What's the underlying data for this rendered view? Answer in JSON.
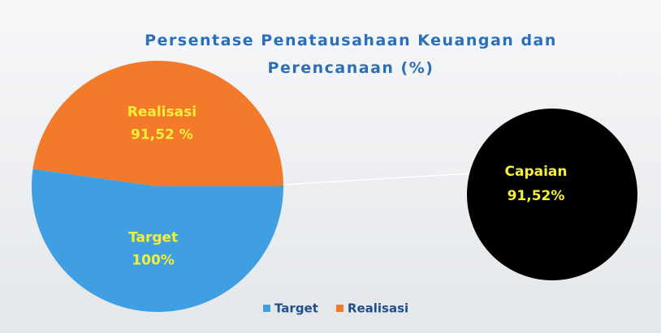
{
  "chart_data": {
    "type": "pie",
    "title": "Persentase Penatausahaan Keuangan dan Perencanaan (%)",
    "categories": [
      "Target",
      "Realisasi"
    ],
    "values": [
      100,
      91.52
    ],
    "value_labels": [
      "100%",
      "91,52 %"
    ],
    "colors": [
      "#3f9fe0",
      "#f27a2a"
    ],
    "legend": "bottom",
    "annotation": {
      "label": "Capaian",
      "value": 91.52,
      "value_label": "91,52%",
      "color": "#000000"
    }
  }
}
